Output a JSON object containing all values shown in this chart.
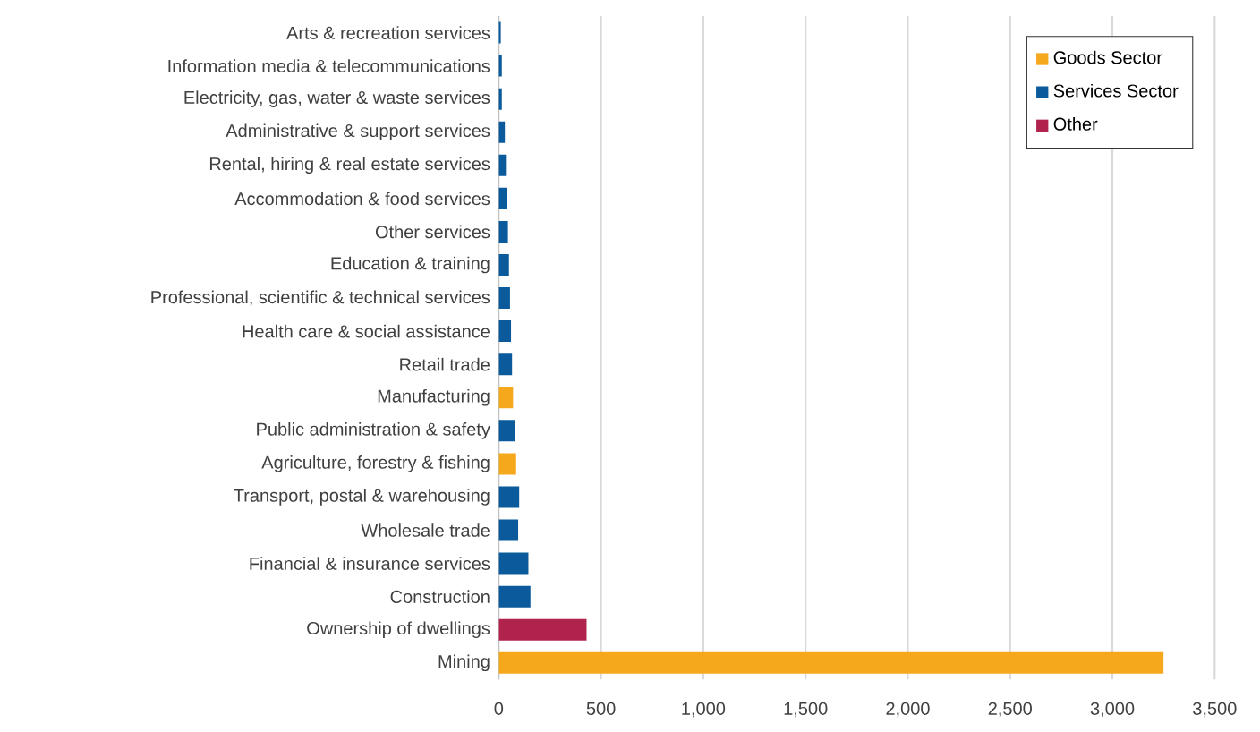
{
  "chart_data": {
    "type": "bar",
    "orientation": "horizontal",
    "categories": [
      "Arts & recreation services",
      "Information media & telecommunications",
      "Electricity, gas, water & waste services",
      "Administrative & support services",
      "Rental, hiring & real estate services",
      "Accommodation & food services",
      "Other services",
      "Education & training",
      "Professional, scientific & technical services",
      "Health care & social assistance",
      "Retail trade",
      "Manufacturing",
      "Public administration & safety",
      "Agriculture, forestry & fishing",
      "Transport, postal & warehousing",
      "Wholesale trade",
      "Financial & insurance services",
      "Construction",
      "Ownership of dwellings",
      "Mining"
    ],
    "series": [
      {
        "name": "Goods Sector",
        "color": "#f5a81c",
        "values": [
          null,
          null,
          null,
          null,
          null,
          null,
          null,
          null,
          null,
          null,
          null,
          70,
          null,
          85,
          null,
          null,
          null,
          null,
          null,
          3250
        ]
      },
      {
        "name": "Services Sector",
        "color": "#0a5a9c",
        "values": [
          10,
          15,
          15,
          30,
          35,
          40,
          45,
          50,
          55,
          60,
          65,
          null,
          80,
          null,
          100,
          95,
          145,
          155,
          null,
          null
        ]
      },
      {
        "name": "Other",
        "color": "#b0234c",
        "values": [
          null,
          null,
          null,
          null,
          null,
          null,
          null,
          null,
          null,
          null,
          null,
          null,
          null,
          null,
          null,
          null,
          null,
          null,
          430,
          null
        ]
      }
    ],
    "xlim": [
      0,
      3500
    ],
    "xticks": [
      0,
      500,
      {
        "value": 1000,
        "label": "1,000"
      },
      {
        "value": 1500,
        "label": "1,500"
      },
      {
        "value": 2000,
        "label": "2,000"
      },
      {
        "value": 2500,
        "label": "2,500"
      },
      {
        "value": 3000,
        "label": "3,000"
      },
      {
        "value": 3500,
        "label": "3,500"
      }
    ],
    "grid": "x",
    "legend": "top right"
  }
}
